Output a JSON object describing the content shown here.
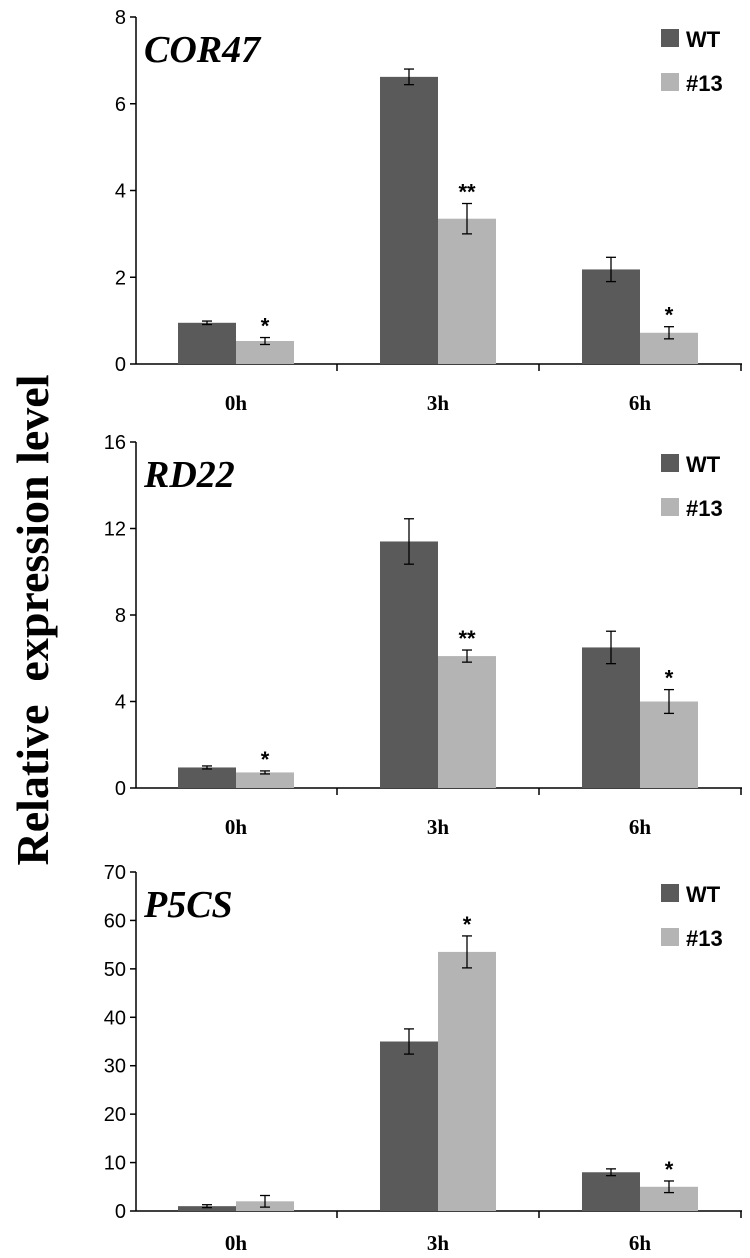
{
  "figure": {
    "ylabel": "Relative  expression level"
  },
  "chart_data": [
    {
      "type": "bar",
      "title": "COR47",
      "categories": [
        "0h",
        "3h",
        "6h"
      ],
      "series": [
        {
          "name": "WT",
          "color": "#5a5a5a",
          "values": [
            0.95,
            6.62,
            2.18
          ],
          "errors": [
            0.04,
            0.18,
            0.28
          ],
          "significance": [
            "",
            "",
            ""
          ]
        },
        {
          "name": "#13",
          "color": "#b4b4b4",
          "values": [
            0.53,
            3.35,
            0.72
          ],
          "errors": [
            0.08,
            0.35,
            0.14
          ],
          "significance": [
            "*",
            "**",
            "*"
          ]
        }
      ],
      "ylim": [
        0,
        8
      ],
      "yticks": [
        0,
        2,
        4,
        6,
        8
      ],
      "xlabel": "",
      "ylabel": "Relative  expression level"
    },
    {
      "type": "bar",
      "title": "RD22",
      "categories": [
        "0h",
        "3h",
        "6h"
      ],
      "series": [
        {
          "name": "WT",
          "color": "#5a5a5a",
          "values": [
            0.95,
            11.4,
            6.5
          ],
          "errors": [
            0.07,
            1.05,
            0.75
          ],
          "significance": [
            "",
            "",
            ""
          ]
        },
        {
          "name": "#13",
          "color": "#b4b4b4",
          "values": [
            0.72,
            6.1,
            4.0
          ],
          "errors": [
            0.07,
            0.28,
            0.55
          ],
          "significance": [
            "*",
            "**",
            "*"
          ]
        }
      ],
      "ylim": [
        0,
        16
      ],
      "yticks": [
        0,
        4,
        8,
        12,
        16
      ],
      "xlabel": "",
      "ylabel": "Relative  expression level"
    },
    {
      "type": "bar",
      "title": "P5CS",
      "categories": [
        "0h",
        "3h",
        "6h"
      ],
      "series": [
        {
          "name": "WT",
          "color": "#5a5a5a",
          "values": [
            1.0,
            35.0,
            8.0
          ],
          "errors": [
            0.3,
            2.6,
            0.7
          ],
          "significance": [
            "",
            "",
            ""
          ]
        },
        {
          "name": "#13",
          "color": "#b4b4b4",
          "values": [
            2.0,
            53.5,
            5.0
          ],
          "errors": [
            1.2,
            3.3,
            1.2
          ],
          "significance": [
            "",
            "*",
            "*"
          ]
        }
      ],
      "ylim": [
        0,
        70
      ],
      "yticks": [
        0,
        10,
        20,
        30,
        40,
        50,
        60,
        70
      ],
      "xlabel": "",
      "ylabel": "Relative  expression level"
    }
  ]
}
